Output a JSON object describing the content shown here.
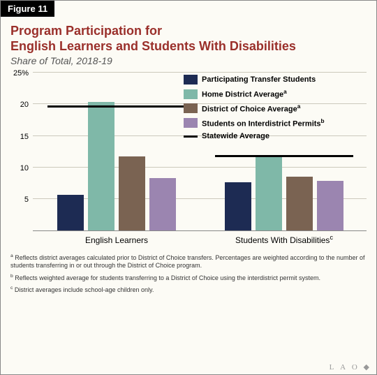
{
  "figure_label": "Figure 11",
  "title_line1": "Program Participation for",
  "title_line2": "English Learners and Students With Disabilities",
  "subtitle": "Share of Total, 2018-19",
  "title_color": "#9a2f2a",
  "title_fontsize": 18,
  "subtitle_color": "#555555",
  "subtitle_fontsize": 14,
  "figtab_fontsize": 13,
  "background_color": "#fcfbf5",
  "chart": {
    "type": "grouped-bar",
    "y_max": 25,
    "y_ticks": [
      5,
      10,
      15,
      20,
      25
    ],
    "y_tick_labels": [
      "5",
      "10",
      "15",
      "20",
      "25%"
    ],
    "ylabel_fontsize": 11,
    "xlabel_fontsize": 12,
    "legend_fontsize": 11,
    "grid_color": "#ccc9bc",
    "axis_color": "#888888",
    "series": [
      {
        "key": "participating",
        "label": "Participating Transfer Students",
        "color": "#1d2b53"
      },
      {
        "key": "home",
        "label": "Home District Average",
        "sup": "a",
        "color": "#7fb8a8"
      },
      {
        "key": "choice",
        "label": "District of Choice Average",
        "sup": "a",
        "color": "#7a6352"
      },
      {
        "key": "permits",
        "label": "Students on Interdistrict Permits",
        "sup": "b",
        "color": "#9b85b0"
      }
    ],
    "statewide_label": "Statewide Average",
    "statewide_color": "#000000",
    "groups": [
      {
        "label": "English Learners",
        "sup": "",
        "values": {
          "participating": 5.7,
          "home": 20.4,
          "choice": 11.8,
          "permits": 8.3
        },
        "statewide": 19.6
      },
      {
        "label": "Students With Disabilities",
        "sup": "c",
        "values": {
          "participating": 7.7,
          "home": 11.7,
          "choice": 8.5,
          "permits": 7.9
        },
        "statewide": 11.7
      }
    ]
  },
  "footnotes": {
    "fontsize": 9,
    "color": "#333333",
    "a": "Reflects district averages calculated prior to District of Choice transfers. Percentages are weighted according to the number of students transferring in or out through the District of Choice program.",
    "b": "Reflects weighted average for students transferring to a District of Choice using the interdistrict permit system.",
    "c": "District averages include school-age children only."
  },
  "watermark": "L A O"
}
